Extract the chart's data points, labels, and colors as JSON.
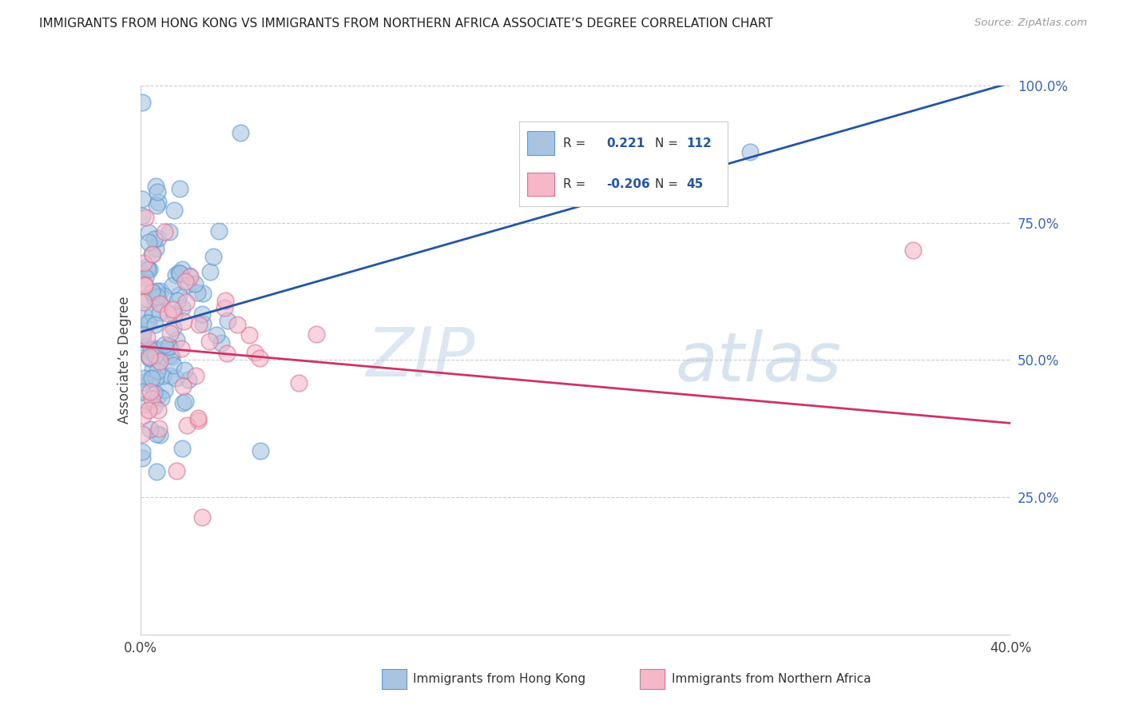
{
  "title": "IMMIGRANTS FROM HONG KONG VS IMMIGRANTS FROM NORTHERN AFRICA ASSOCIATE’S DEGREE CORRELATION CHART",
  "source": "Source: ZipAtlas.com",
  "ylabel": "Associate’s Degree",
  "xlim": [
    0.0,
    0.4
  ],
  "ylim": [
    0.0,
    1.0
  ],
  "blue_R": 0.221,
  "blue_N": 112,
  "pink_R": -0.206,
  "pink_N": 45,
  "blue_scatter_color": "#a8c4e0",
  "blue_edge_color": "#5b9bd5",
  "pink_scatter_color": "#f4b8c8",
  "pink_edge_color": "#e07090",
  "blue_line_color": "#2255aa",
  "pink_line_color": "#cc3366",
  "watermark_zip_color": "#c5d8ee",
  "watermark_atlas_color": "#b8cce0",
  "legend_label_blue": "Immigrants from Hong Kong",
  "legend_label_pink": "Immigrants from Northern Africa",
  "blue_trendline": [
    0.0,
    0.551,
    0.4,
    1.005
  ],
  "pink_trendline": [
    0.0,
    0.525,
    0.4,
    0.385
  ]
}
